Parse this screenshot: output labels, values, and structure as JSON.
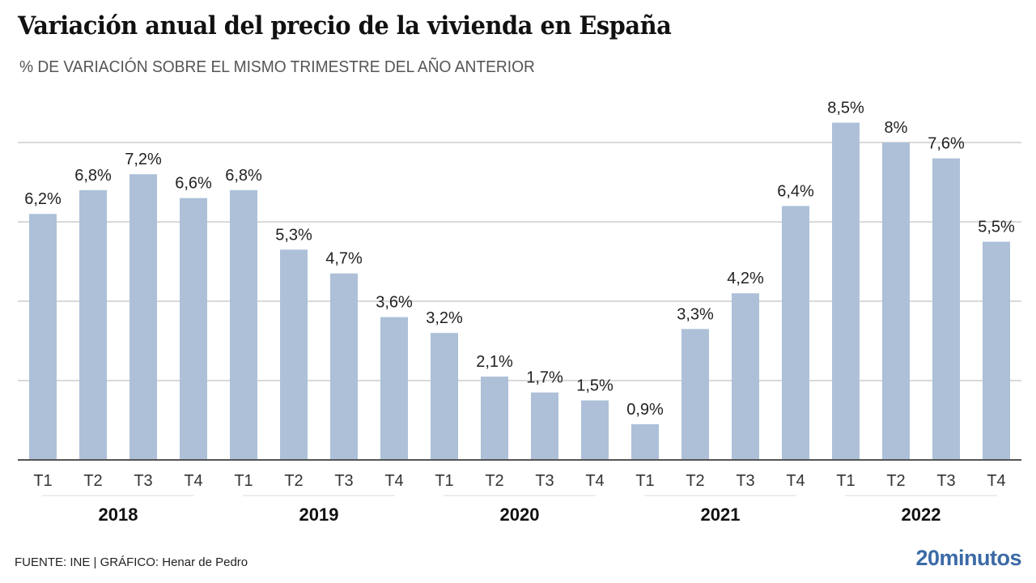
{
  "header": {
    "title": "Variación anual del precio de la vivienda en España",
    "subtitle": "% DE VARIACIÓN SOBRE EL MISMO TRIMESTRE DEL AÑO ANTERIOR"
  },
  "footer": {
    "source": "FUENTE: INE  |  GRÁFICO: Henar de Pedro",
    "brand": "20minutos"
  },
  "colors": {
    "bar": "#adc0d8",
    "grid": "#d9d9d9",
    "axis": "#555555",
    "brand": "#3b6aa6"
  },
  "chart_data": {
    "type": "bar",
    "title": "Variación anual del precio de la vivienda en España",
    "subtitle": "% DE VARIACIÓN SOBRE EL MISMO TRIMESTRE DEL AÑO ANTERIOR",
    "xlabel": "",
    "ylabel": "",
    "ylim": [
      0,
      8
    ],
    "grid": true,
    "gridlines": [
      2,
      4,
      6,
      8
    ],
    "categories": [
      "T1",
      "T2",
      "T3",
      "T4",
      "T1",
      "T2",
      "T3",
      "T4",
      "T1",
      "T2",
      "T3",
      "T4",
      "T1",
      "T2",
      "T3",
      "T4",
      "T1",
      "T2",
      "T3",
      "T4"
    ],
    "groups": [
      {
        "label": "2018",
        "count": 4
      },
      {
        "label": "2019",
        "count": 4
      },
      {
        "label": "2020",
        "count": 4
      },
      {
        "label": "2021",
        "count": 4
      },
      {
        "label": "2022",
        "count": 4
      }
    ],
    "values": [
      6.2,
      6.8,
      7.2,
      6.6,
      6.8,
      5.3,
      4.7,
      3.6,
      3.2,
      2.1,
      1.7,
      1.5,
      0.9,
      3.3,
      4.2,
      6.4,
      8.5,
      8.0,
      7.6,
      5.5
    ],
    "labels": [
      "6,2%",
      "6,8%",
      "7,2%",
      "6,6%",
      "6,8%",
      "5,3%",
      "4,7%",
      "3,6%",
      "3,2%",
      "2,1%",
      "1,7%",
      "1,5%",
      "0,9%",
      "3,3%",
      "4,2%",
      "6,4%",
      "8,5%",
      "8%",
      "7,6%",
      "5,5%"
    ]
  }
}
